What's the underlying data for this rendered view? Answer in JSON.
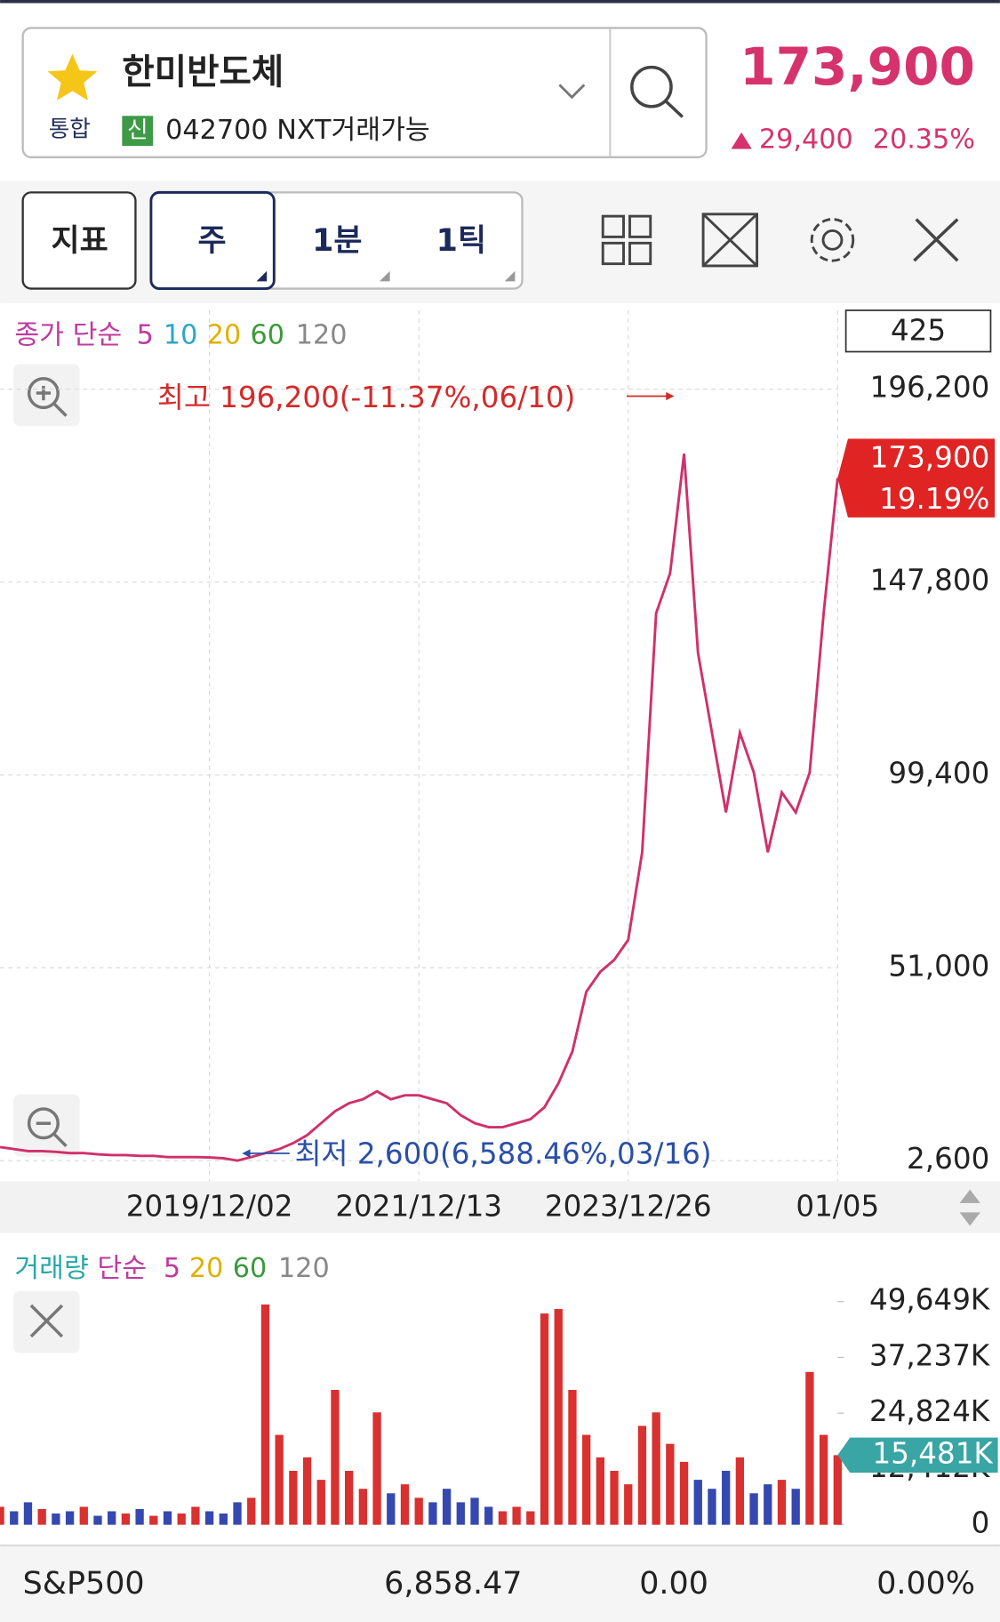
{
  "header": {
    "name": "한미반도체",
    "market": "통합",
    "credit": "신",
    "code": "042700 NXT거래가능",
    "price": "173,900",
    "change": "29,400",
    "change_pct": "20.35%"
  },
  "toolbar": {
    "indicator": "지표",
    "period": "주",
    "minute": "1분",
    "tick": "1틱"
  },
  "price_legend": {
    "label": "종가 단순",
    "ma": [
      "5",
      "10",
      "20",
      "60",
      "120"
    ],
    "count": "425"
  },
  "volume_legend": {
    "label": "거래량",
    "kind": "단순",
    "ma": [
      "5",
      "20",
      "60",
      "120"
    ]
  },
  "annotations": {
    "high": "최고 196,200(-11.37%,06/10)",
    "low": "최저 2,600(6,588.46%,03/16)"
  },
  "footer": {
    "index": "S&P500",
    "value": "6,858.47",
    "change": "0.00",
    "pct": "0.00%"
  },
  "chart_data": [
    {
      "type": "line",
      "categories": [
        null,
        null,
        null,
        null,
        null,
        null,
        null,
        null,
        null,
        null,
        null,
        null,
        null,
        null,
        null,
        "2019/12/02",
        null,
        null,
        null,
        null,
        null,
        null,
        null,
        null,
        null,
        null,
        null,
        null,
        null,
        null,
        "2021/12/13",
        null,
        null,
        null,
        null,
        null,
        null,
        null,
        null,
        null,
        null,
        null,
        null,
        null,
        null,
        "2023/12/26",
        null,
        null,
        null,
        null,
        null,
        null,
        null,
        null,
        null,
        null,
        null,
        null,
        null,
        null,
        "01/05"
      ],
      "series": [
        {
          "color": "#d0306a",
          "values": [
            6000,
            5500,
            5000,
            5000,
            4800,
            4500,
            4500,
            4200,
            4000,
            4000,
            3800,
            3800,
            3500,
            3500,
            3500,
            3400,
            3200,
            2600,
            3500,
            4500,
            5500,
            7000,
            9000,
            12000,
            15000,
            17000,
            18000,
            20000,
            18000,
            19000,
            19000,
            18000,
            17000,
            14000,
            12000,
            11000,
            11000,
            12000,
            13000,
            16000,
            22000,
            30000,
            45000,
            50000,
            53000,
            58000,
            80000,
            140000,
            150000,
            180000,
            130000,
            110000,
            90000,
            110000,
            100000,
            80000,
            95000,
            90000,
            100000,
            140000,
            173900
          ]
        }
      ],
      "ylim": [
        2600,
        216000
      ],
      "yticks": [
        {
          "value": 2600,
          "label": "2,600"
        },
        {
          "value": 51000,
          "label": "51,000"
        },
        {
          "value": 99400,
          "label": "99,400"
        },
        {
          "value": 147800,
          "label": "147,800"
        },
        {
          "value": 196200,
          "label": "196,200"
        }
      ],
      "grid": true,
      "current_value": 173900,
      "current_label": "173,900",
      "current_pct": "19.19%",
      "marker_color": "#e02424"
    },
    {
      "type": "bar",
      "series": [
        {
          "up_color": "#d93030",
          "down_color": "#3548b0",
          "values": [
            4000,
            3000,
            5000,
            3500,
            2500,
            3000,
            4000,
            2000,
            3000,
            2500,
            3500,
            2000,
            3000,
            2500,
            4000,
            3000,
            2500,
            5000,
            6000,
            49000,
            20000,
            12000,
            15000,
            10000,
            30000,
            12000,
            8000,
            25000,
            7000,
            9000,
            6000,
            5000,
            8000,
            5000,
            6000,
            4000,
            3000,
            4000,
            3000,
            47000,
            48000,
            30000,
            20000,
            15000,
            12000,
            9000,
            22000,
            25000,
            18000,
            14000,
            10000,
            8000,
            12000,
            15000,
            7000,
            9000,
            10000,
            8000,
            34000,
            20000,
            15481
          ]
        }
      ],
      "ylim": [
        0,
        55000
      ],
      "yticks": [
        0,
        {
          "value": 12412,
          "label": "12,412K"
        },
        {
          "value": 24824,
          "label": "24,824K"
        },
        {
          "value": 37237,
          "label": "37,237K"
        },
        {
          "value": 49649,
          "label": "49,649K"
        }
      ],
      "current_value": 15481,
      "current_label": "15,481K",
      "marker_color": "#3aa5a5"
    }
  ]
}
